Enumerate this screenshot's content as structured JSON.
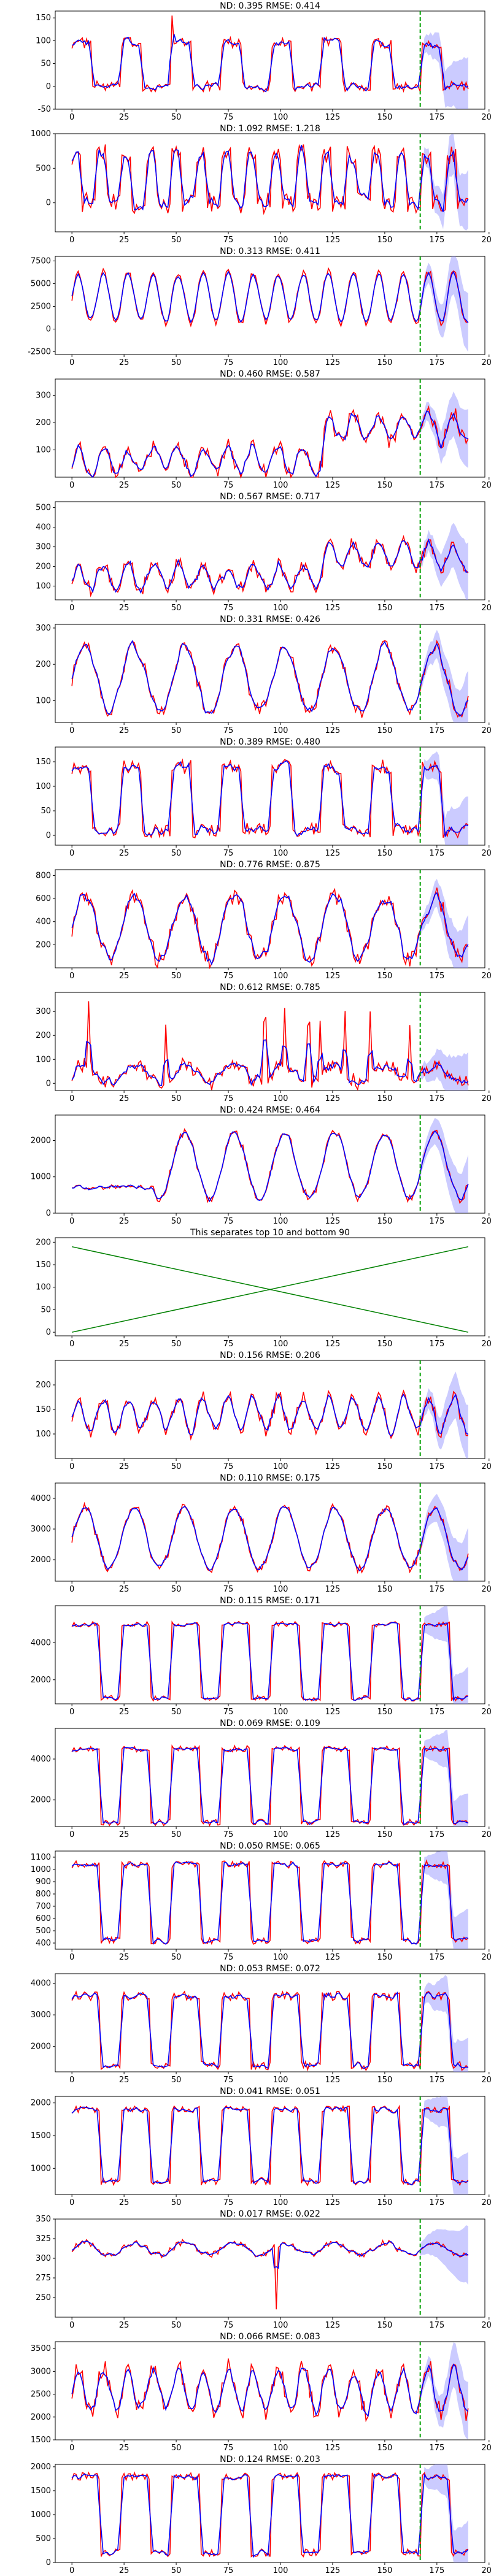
{
  "figure": {
    "panel_count": 21
  },
  "colors": {
    "forecast": "#0000ff",
    "actual": "#ff0000",
    "band": "#8c8cff",
    "divider": "#00a000",
    "separator_lines": "#008000"
  },
  "chart_data": [
    {
      "type": "line",
      "title": "ND:  0.395 RMSE:  0.414",
      "xlim": [
        -8,
        198
      ],
      "ylim": [
        -50,
        165
      ],
      "yticks": [
        -50,
        0,
        50,
        100,
        150
      ],
      "xticks": [
        0,
        25,
        50,
        75,
        100,
        125,
        150,
        175,
        200
      ],
      "forecast_start": 167,
      "pattern": {
        "kind": "pulse",
        "base": 25,
        "amp": 70,
        "period": 24,
        "noise": 12,
        "zero_floor": true,
        "peak_day": 48,
        "peak_val": 155
      }
    },
    {
      "type": "line",
      "title": "ND:  1.092 RMSE:  1.218",
      "xlim": [
        -8,
        198
      ],
      "ylim": [
        -420,
        1000
      ],
      "yticks": [
        0,
        500,
        1000
      ],
      "xticks": [
        0,
        25,
        50,
        75,
        100,
        125,
        150,
        175,
        200
      ],
      "forecast_start": 167,
      "pattern": {
        "kind": "pulse",
        "base": 0,
        "amp": 700,
        "period": 12,
        "noise": 150,
        "zero_floor": true
      }
    },
    {
      "type": "line",
      "title": "ND:  0.313 RMSE:  0.411",
      "xlim": [
        -8,
        198
      ],
      "ylim": [
        -2800,
        8000
      ],
      "yticks": [
        -2500,
        0,
        2500,
        5000,
        7500
      ],
      "xticks": [
        0,
        25,
        50,
        75,
        100,
        125,
        150,
        175,
        200
      ],
      "forecast_start": 167,
      "pattern": {
        "kind": "wave",
        "base": 3500,
        "amp": 2800,
        "period": 12,
        "noise": 400
      }
    },
    {
      "type": "line",
      "title": "ND:  0.460 RMSE:  0.587",
      "xlim": [
        -8,
        198
      ],
      "ylim": [
        0,
        360
      ],
      "yticks": [
        100,
        200,
        300
      ],
      "xticks": [
        0,
        25,
        50,
        75,
        100,
        125,
        150,
        175,
        200
      ],
      "forecast_start": 167,
      "pattern": {
        "kind": "rise",
        "base": 60,
        "amp": 50,
        "period": 12,
        "noise": 30,
        "late_bump": 200
      }
    },
    {
      "type": "line",
      "title": "ND:  0.567 RMSE:  0.717",
      "xlim": [
        -8,
        198
      ],
      "ylim": [
        30,
        530
      ],
      "yticks": [
        100,
        200,
        300,
        400,
        500
      ],
      "xticks": [
        0,
        25,
        50,
        75,
        100,
        125,
        150,
        175,
        200
      ],
      "forecast_start": 167,
      "pattern": {
        "kind": "rise",
        "base": 150,
        "amp": 60,
        "period": 12,
        "noise": 40,
        "late_bump": 180
      }
    },
    {
      "type": "line",
      "title": "ND:  0.331 RMSE:  0.426",
      "xlim": [
        -8,
        198
      ],
      "ylim": [
        40,
        310
      ],
      "yticks": [
        100,
        200,
        300
      ],
      "xticks": [
        0,
        25,
        50,
        75,
        100,
        125,
        150,
        175,
        200
      ],
      "forecast_start": 167,
      "pattern": {
        "kind": "wave",
        "base": 160,
        "amp": 90,
        "period": 24,
        "noise": 20
      }
    },
    {
      "type": "line",
      "title": "ND:  0.389 RMSE:  0.480",
      "xlim": [
        -8,
        198
      ],
      "ylim": [
        -20,
        180
      ],
      "yticks": [
        0,
        50,
        100,
        150
      ],
      "xticks": [
        0,
        25,
        50,
        75,
        100,
        125,
        150,
        175,
        200
      ],
      "forecast_start": 167,
      "pattern": {
        "kind": "pulse",
        "base": 10,
        "amp": 130,
        "period": 24,
        "noise": 15,
        "zero_floor": false
      }
    },
    {
      "type": "line",
      "title": "ND:  0.776 RMSE:  0.875",
      "xlim": [
        -8,
        198
      ],
      "ylim": [
        0,
        850
      ],
      "yticks": [
        200,
        400,
        600,
        800
      ],
      "xticks": [
        0,
        25,
        50,
        75,
        100,
        125,
        150,
        175,
        200
      ],
      "forecast_start": 167,
      "pattern": {
        "kind": "wave",
        "base": 350,
        "amp": 280,
        "period": 24,
        "noise": 80
      }
    },
    {
      "type": "line",
      "title": "ND:  0.612 RMSE:  0.785",
      "xlim": [
        -8,
        198
      ],
      "ylim": [
        -30,
        380
      ],
      "yticks": [
        0,
        100,
        200,
        300
      ],
      "xticks": [
        0,
        25,
        50,
        75,
        100,
        125,
        150,
        175,
        200
      ],
      "forecast_start": 167,
      "pattern": {
        "kind": "spiky",
        "base": 40,
        "amp": 40,
        "period": 24,
        "noise": 30
      }
    },
    {
      "type": "line",
      "title": "ND:  0.424 RMSE:  0.464",
      "xlim": [
        -8,
        198
      ],
      "ylim": [
        0,
        2700
      ],
      "yticks": [
        0,
        1000,
        2000
      ],
      "xticks": [
        0,
        25,
        50,
        75,
        100,
        125,
        150,
        175,
        200
      ],
      "forecast_start": 167,
      "pattern": {
        "kind": "wave",
        "base": 1300,
        "amp": 900,
        "period": 24,
        "noise": 120,
        "start": 40
      }
    },
    {
      "type": "line",
      "title": "This separates top 10 and bottom 90",
      "xlim": [
        -8,
        198
      ],
      "ylim": [
        -8,
        210
      ],
      "yticks": [
        0,
        50,
        100,
        150,
        200
      ],
      "xticks": [
        0,
        25,
        50,
        75,
        100,
        125,
        150,
        175,
        200
      ],
      "separator": true
    },
    {
      "type": "line",
      "title": "ND:  0.156 RMSE:  0.206",
      "xlim": [
        -8,
        198
      ],
      "ylim": [
        50,
        250
      ],
      "yticks": [
        100,
        150,
        200
      ],
      "xticks": [
        0,
        25,
        50,
        75,
        100,
        125,
        150,
        175,
        200
      ],
      "forecast_start": 167,
      "pattern": {
        "kind": "wave",
        "base": 140,
        "amp": 35,
        "period": 12,
        "noise": 15
      }
    },
    {
      "type": "line",
      "title": "ND:  0.110 RMSE:  0.175",
      "xlim": [
        -8,
        198
      ],
      "ylim": [
        1300,
        4500
      ],
      "yticks": [
        2000,
        3000,
        4000
      ],
      "xticks": [
        0,
        25,
        50,
        75,
        100,
        125,
        150,
        175,
        200
      ],
      "forecast_start": 167,
      "pattern": {
        "kind": "wave",
        "base": 2700,
        "amp": 1000,
        "period": 24,
        "noise": 150
      }
    },
    {
      "type": "line",
      "title": "ND:  0.115 RMSE:  0.171",
      "xlim": [
        -8,
        198
      ],
      "ylim": [
        700,
        6000
      ],
      "yticks": [
        2000,
        4000
      ],
      "xticks": [
        0,
        25,
        50,
        75,
        100,
        125,
        150,
        175,
        200
      ],
      "forecast_start": 167,
      "pattern": {
        "kind": "square",
        "base": 3000,
        "amp": 2000,
        "period": 24,
        "noise": 150
      }
    },
    {
      "type": "line",
      "title": "ND:  0.069 RMSE:  0.109",
      "xlim": [
        -8,
        198
      ],
      "ylim": [
        700,
        5500
      ],
      "yticks": [
        2000,
        4000
      ],
      "xticks": [
        0,
        25,
        50,
        75,
        100,
        125,
        150,
        175,
        200
      ],
      "forecast_start": 167,
      "pattern": {
        "kind": "square",
        "base": 2700,
        "amp": 1800,
        "period": 24,
        "noise": 150
      }
    },
    {
      "type": "line",
      "title": "ND:  0.050 RMSE:  0.065",
      "xlim": [
        -8,
        198
      ],
      "ylim": [
        350,
        1150
      ],
      "yticks": [
        400,
        500,
        600,
        700,
        800,
        900,
        1000,
        1100
      ],
      "xticks": [
        0,
        25,
        50,
        75,
        100,
        125,
        150,
        175,
        200
      ],
      "forecast_start": 167,
      "pattern": {
        "kind": "square",
        "base": 730,
        "amp": 310,
        "period": 24,
        "noise": 30
      }
    },
    {
      "type": "line",
      "title": "ND:  0.053 RMSE:  0.072",
      "xlim": [
        -8,
        198
      ],
      "ylim": [
        1200,
        4300
      ],
      "yticks": [
        2000,
        3000,
        4000
      ],
      "xticks": [
        0,
        25,
        50,
        75,
        100,
        125,
        150,
        175,
        200
      ],
      "forecast_start": 167,
      "pattern": {
        "kind": "square",
        "base": 2500,
        "amp": 1100,
        "period": 24,
        "noise": 150
      }
    },
    {
      "type": "line",
      "title": "ND:  0.041 RMSE:  0.051",
      "xlim": [
        -8,
        198
      ],
      "ylim": [
        600,
        2100
      ],
      "yticks": [
        1000,
        1500,
        2000
      ],
      "xticks": [
        0,
        25,
        50,
        75,
        100,
        125,
        150,
        175,
        200
      ],
      "forecast_start": 167,
      "pattern": {
        "kind": "square",
        "base": 1350,
        "amp": 550,
        "period": 24,
        "noise": 60
      }
    },
    {
      "type": "line",
      "title": "ND:  0.017 RMSE:  0.022",
      "xlim": [
        -8,
        198
      ],
      "ylim": [
        225,
        350
      ],
      "yticks": [
        250,
        275,
        300,
        325,
        350
      ],
      "xticks": [
        0,
        25,
        50,
        75,
        100,
        125,
        150,
        175,
        200
      ],
      "forecast_start": 167,
      "pattern": {
        "kind": "flat",
        "base": 312,
        "amp": 8,
        "period": 24,
        "noise": 4,
        "dip_day": 98,
        "dip_val": 235
      }
    },
    {
      "type": "line",
      "title": "ND:  0.066 RMSE:  0.083",
      "xlim": [
        -8,
        198
      ],
      "ylim": [
        1500,
        3650
      ],
      "yticks": [
        1500,
        2000,
        2500,
        3000,
        3500
      ],
      "xticks": [
        0,
        25,
        50,
        75,
        100,
        125,
        150,
        175,
        200
      ],
      "forecast_start": 167,
      "pattern": {
        "kind": "wave",
        "base": 2600,
        "amp": 500,
        "period": 12,
        "noise": 200
      }
    },
    {
      "type": "line",
      "title": "ND:  0.124 RMSE:  0.203",
      "xlim": [
        -8,
        198
      ],
      "ylim": [
        0,
        2050
      ],
      "yticks": [
        0,
        500,
        1000,
        1500,
        2000
      ],
      "xticks": [
        0,
        25,
        50,
        75,
        100,
        125,
        150,
        175,
        200
      ],
      "forecast_start": 167,
      "pattern": {
        "kind": "square",
        "base": 1000,
        "amp": 800,
        "period": 24,
        "noise": 80
      }
    }
  ]
}
